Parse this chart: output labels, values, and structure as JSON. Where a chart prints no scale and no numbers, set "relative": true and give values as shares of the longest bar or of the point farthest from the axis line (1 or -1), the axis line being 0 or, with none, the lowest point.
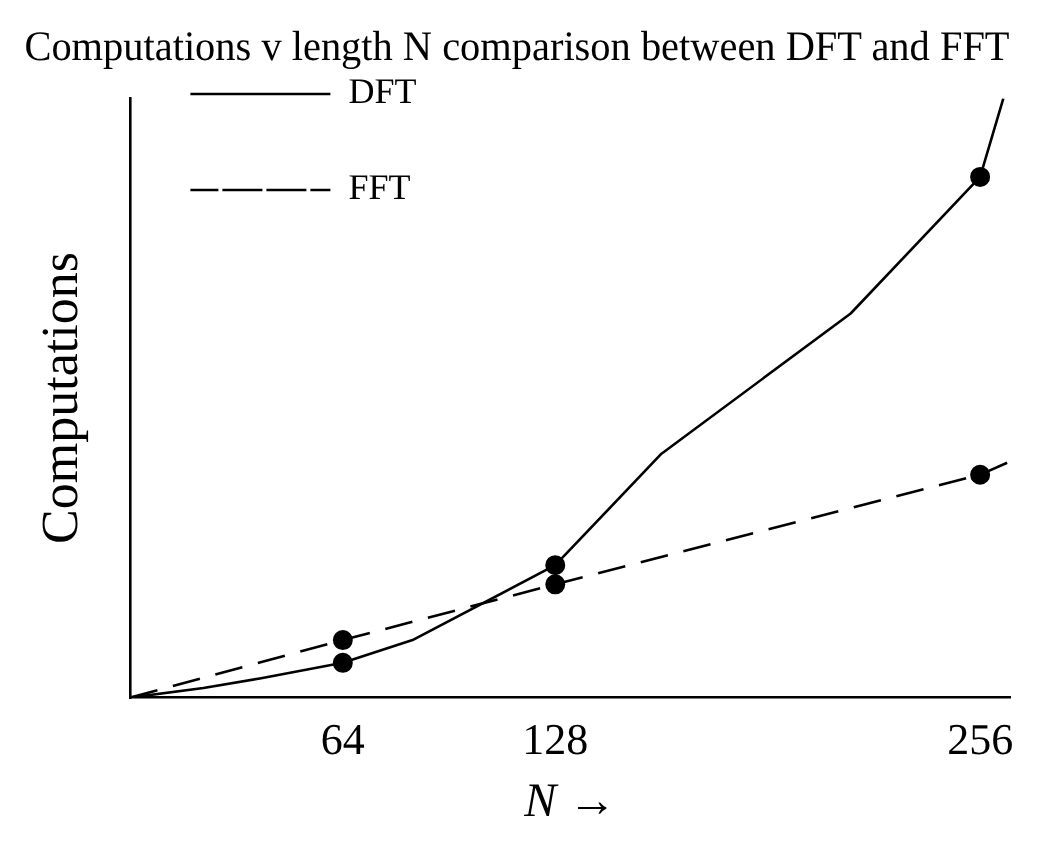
{
  "chart_data": {
    "type": "line",
    "title": "Computations v length N comparison between DFT and FFT",
    "xlabel": "N →",
    "ylabel": "Computations",
    "relative": true,
    "xlim": [
      0,
      265
    ],
    "xticks": [
      64,
      128,
      256
    ],
    "grid": false,
    "legend": "top left",
    "series": [
      {
        "name": "DFT",
        "color": "#000000",
        "line_style": "solid",
        "marker": "none",
        "x": [
          0,
          22,
          39,
          64,
          85,
          128,
          160,
          217,
          256,
          263
        ],
        "values": [
          0,
          0.016,
          0.032,
          0.058,
          0.096,
          0.221,
          0.407,
          0.641,
          0.869,
          1
        ]
      },
      {
        "name": "FFT",
        "color": "#000000",
        "line_style": "dashed",
        "marker": "none",
        "x": [
          0,
          64,
          128,
          256,
          265
        ],
        "values": [
          0,
          0.096,
          0.189,
          0.372,
          0.394
        ]
      },
      {
        "type": "scatter",
        "color": "#000000",
        "marker": "circle",
        "x": [
          64,
          128,
          256
        ],
        "values": [
          0.058,
          0.221,
          0.869
        ]
      },
      {
        "type": "scatter",
        "color": "#000000",
        "marker": "circle",
        "x": [
          64,
          128,
          256
        ],
        "values": [
          0.096,
          0.189,
          0.372
        ]
      }
    ]
  }
}
